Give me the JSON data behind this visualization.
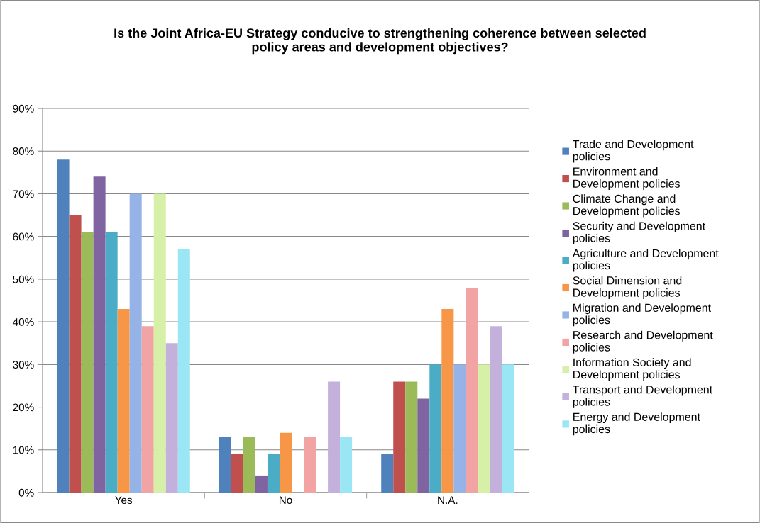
{
  "chart_data": {
    "type": "bar",
    "title": "Is the Joint Africa-EU Strategy conducive to strengthening coherence between selected\npolicy areas and development objectives?",
    "categories": [
      "Yes",
      "No",
      "N.A."
    ],
    "series": [
      {
        "name": "Trade and Development\npolicies",
        "color": "#4f81bd",
        "values": [
          78,
          13,
          9
        ]
      },
      {
        "name": "Environment and\nDevelopment policies",
        "color": "#c0504d",
        "values": [
          65,
          9,
          26
        ]
      },
      {
        "name": "Climate Change and\nDevelopment policies",
        "color": "#9bbb59",
        "values": [
          61,
          13,
          26
        ]
      },
      {
        "name": "Security and Development\npolicies",
        "color": "#8064a2",
        "values": [
          74,
          4,
          22
        ]
      },
      {
        "name": "Agriculture and Development\npolicies",
        "color": "#4bacc6",
        "values": [
          61,
          9,
          30
        ]
      },
      {
        "name": "Social Dimension and\nDevelopment policies",
        "color": "#f79646",
        "values": [
          43,
          14,
          43
        ]
      },
      {
        "name": "Migration and Development\npolicies",
        "color": "#95b3e7",
        "values": [
          70,
          0,
          30
        ]
      },
      {
        "name": "Research and Development\npolicies",
        "color": "#f2a4a4",
        "values": [
          39,
          13,
          48
        ]
      },
      {
        "name": "Information Society and\nDevelopment policies",
        "color": "#d7f0a8",
        "values": [
          70,
          0,
          30
        ]
      },
      {
        "name": "Transport and Development\npolicies",
        "color": "#c3b1dc",
        "values": [
          35,
          26,
          39
        ]
      },
      {
        "name": "Energy and Development\npolicies",
        "color": "#9ae6f4",
        "values": [
          57,
          13,
          30
        ]
      }
    ],
    "ylim": [
      0,
      90
    ],
    "yticks": [
      {
        "value": 0,
        "label": "0%"
      },
      {
        "value": 10,
        "label": "10%"
      },
      {
        "value": 20,
        "label": "20%"
      },
      {
        "value": 30,
        "label": "30%"
      },
      {
        "value": 40,
        "label": "40%"
      },
      {
        "value": 50,
        "label": "50%"
      },
      {
        "value": 60,
        "label": "60%"
      },
      {
        "value": 70,
        "label": "70%"
      },
      {
        "value": 80,
        "label": "80%"
      },
      {
        "value": 90,
        "label": "90%"
      }
    ],
    "grid": "y",
    "legend": "right"
  }
}
